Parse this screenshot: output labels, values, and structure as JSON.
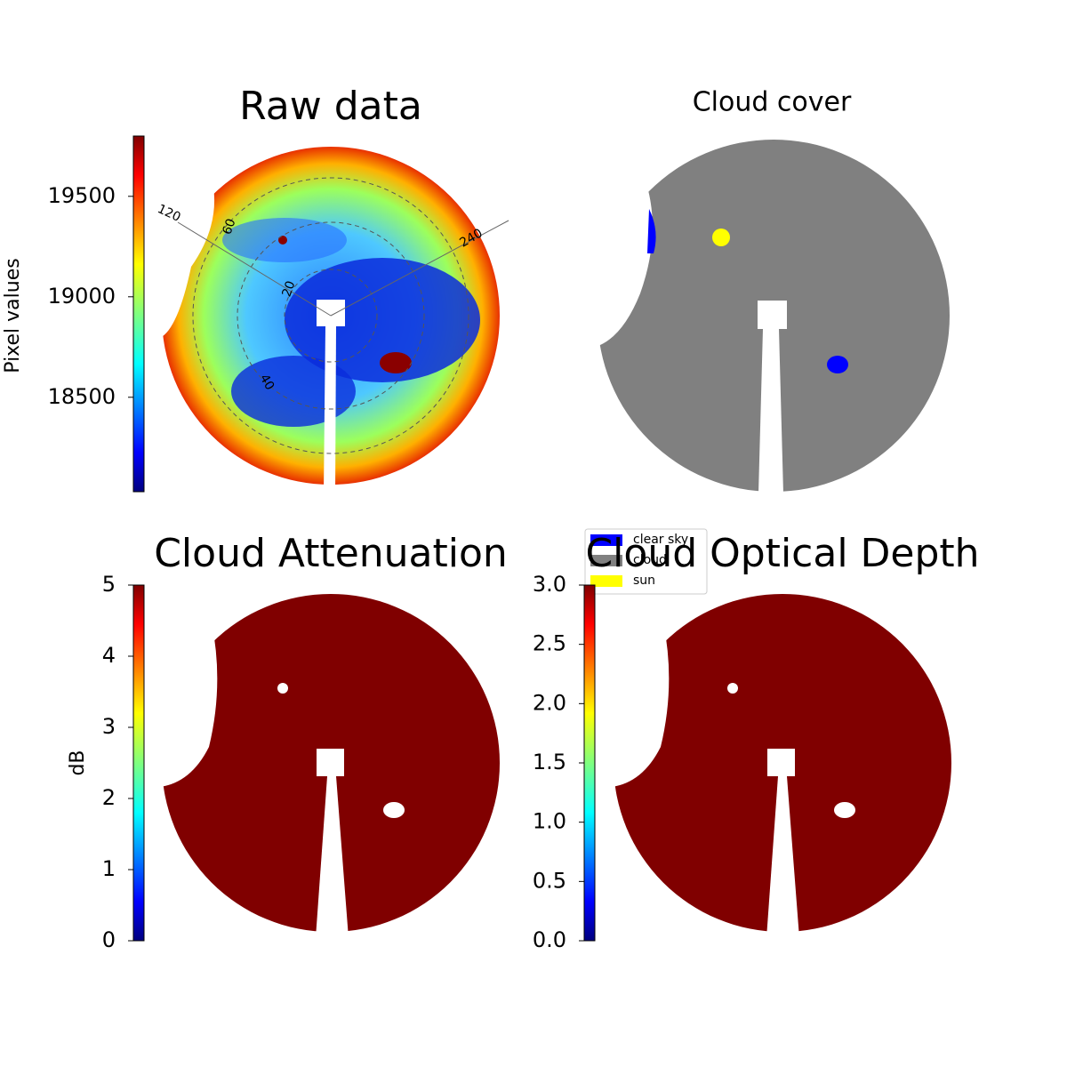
{
  "chart_data": [
    {
      "type": "image",
      "title": "Raw data",
      "colorbar": {
        "label": "Pixel values",
        "colormap": "jet",
        "lim": [
          18030,
          19800
        ],
        "ticks": [
          18500,
          19000,
          19500
        ]
      },
      "annotations": [
        "120",
        "60",
        "240",
        "20",
        "40"
      ]
    },
    {
      "type": "image",
      "title": "Cloud cover",
      "legend": [
        {
          "name": "clear sky",
          "color": "#0000ff"
        },
        {
          "name": "cloud",
          "color": "#808080"
        },
        {
          "name": "sun",
          "color": "#ffff00"
        }
      ]
    },
    {
      "type": "image",
      "title": "Cloud Attenuation",
      "colorbar": {
        "label": "dB",
        "colormap": "jet",
        "lim": [
          0,
          5
        ],
        "ticks": [
          0,
          1,
          2,
          3,
          4,
          5
        ]
      }
    },
    {
      "type": "image",
      "title": "Cloud Optical Depth",
      "colorbar": {
        "colormap": "jet",
        "lim": [
          0,
          3
        ],
        "ticks": [
          {
            "value": 0,
            "label": "0.0"
          },
          {
            "value": 0.5,
            "label": "0.5"
          },
          {
            "value": 1,
            "label": "1.0"
          },
          {
            "value": 1.5,
            "label": "1.5"
          },
          {
            "value": 2,
            "label": "2.0"
          },
          {
            "value": 2.5,
            "label": "2.5"
          },
          {
            "value": 3,
            "label": "3.0"
          }
        ]
      }
    }
  ]
}
